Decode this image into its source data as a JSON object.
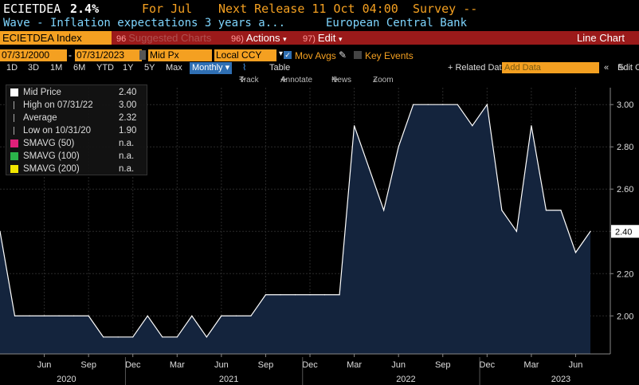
{
  "header": {
    "ticker": "ECIETDEA",
    "value": "2.4%",
    "for_label": "For Jul",
    "next_release": "Next Release 11 Oct 04:00",
    "survey": "Survey --",
    "description": "Wave - Inflation expectations 3 years a...",
    "source": "European Central Bank"
  },
  "toolbar": {
    "index": "ECIETDEA Index",
    "suggested": "Suggested Charts",
    "suggested_num": "96",
    "actions_num": "96)",
    "actions": "Actions",
    "edit_num": "97)",
    "edit": "Edit",
    "chart_type": "Line Chart"
  },
  "settings": {
    "start_date": "07/31/2000",
    "end_date": "07/31/2023",
    "field": "Mid Px",
    "currency": "Local CCY",
    "mov_avgs": "Mov Avgs",
    "key_events": "Key Events",
    "related_data": "+ Related Dat",
    "add_data_placeholder": "Add Data",
    "edit_chart": "Edit Chart"
  },
  "periods": [
    "1D",
    "3D",
    "1M",
    "6M",
    "YTD",
    "1Y",
    "5Y",
    "Max"
  ],
  "frequency": "Monthly",
  "table_label": "Table",
  "tools": [
    "Track",
    "Annotate",
    "News",
    "Zoom"
  ],
  "legend": [
    {
      "label": "Mid Price",
      "value": "2.40",
      "color": "#ffffff"
    },
    {
      "label": "High on 07/31/22",
      "value": "3.00",
      "color": "#aaaaaa"
    },
    {
      "label": "Average",
      "value": "2.32",
      "color": "#aaaaaa"
    },
    {
      "label": "Low on 10/31/20",
      "value": "1.90",
      "color": "#aaaaaa"
    },
    {
      "label": "SMAVG (50)",
      "value": "n.a.",
      "color": "#e0207a"
    },
    {
      "label": "SMAVG (100)",
      "value": "n.a.",
      "color": "#2bb34a"
    },
    {
      "label": "SMAVG (200)",
      "value": "n.a.",
      "color": "#f2e600"
    }
  ],
  "colors": {
    "line": "#ffffff",
    "fill": "#14243d",
    "grid": "#2a2a2a",
    "accent": "#f4a021"
  },
  "chart_data": {
    "type": "area",
    "title": "",
    "xlabel": "",
    "ylabel": "",
    "ylim": [
      1.82,
      3.08
    ],
    "yticks": [
      2.0,
      2.2,
      2.4,
      2.6,
      2.8,
      3.0
    ],
    "ytick_labels": [
      "2.00",
      "2.20",
      "2.40",
      "2.60",
      "2.80",
      "3.00"
    ],
    "last_value_label": "2.40",
    "x_start": "Mar 2020",
    "x": [
      "Mar 2020",
      "Apr 2020",
      "May 2020",
      "Jun 2020",
      "Jul 2020",
      "Aug 2020",
      "Sep 2020",
      "Oct 2020",
      "Nov 2020",
      "Dec 2020",
      "Jan 2021",
      "Feb 2021",
      "Mar 2021",
      "Apr 2021",
      "May 2021",
      "Jun 2021",
      "Jul 2021",
      "Aug 2021",
      "Sep 2021",
      "Oct 2021",
      "Nov 2021",
      "Dec 2021",
      "Jan 2022",
      "Feb 2022",
      "Mar 2022",
      "Apr 2022",
      "May 2022",
      "Jun 2022",
      "Jul 2022",
      "Aug 2022",
      "Sep 2022",
      "Oct 2022",
      "Nov 2022",
      "Dec 2022",
      "Jan 2023",
      "Feb 2023",
      "Mar 2023",
      "Apr 2023",
      "May 2023",
      "Jun 2023",
      "Jul 2023"
    ],
    "values": [
      2.4,
      2.0,
      2.0,
      2.0,
      2.0,
      2.0,
      2.0,
      1.9,
      1.9,
      1.9,
      2.0,
      1.9,
      1.9,
      2.0,
      1.9,
      2.0,
      2.0,
      2.0,
      2.1,
      2.1,
      2.1,
      2.1,
      2.1,
      2.1,
      2.9,
      2.7,
      2.5,
      2.8,
      3.0,
      3.0,
      3.0,
      3.0,
      2.9,
      3.0,
      2.5,
      2.4,
      2.9,
      2.5,
      2.5,
      2.3,
      2.4
    ],
    "month_ticks": [
      {
        "label": "Jun",
        "index": 3
      },
      {
        "label": "Sep",
        "index": 6
      },
      {
        "label": "Dec",
        "index": 9
      },
      {
        "label": "Mar",
        "index": 12
      },
      {
        "label": "Jun",
        "index": 15
      },
      {
        "label": "Sep",
        "index": 18
      },
      {
        "label": "Dec",
        "index": 21
      },
      {
        "label": "Mar",
        "index": 24
      },
      {
        "label": "Jun",
        "index": 27
      },
      {
        "label": "Sep",
        "index": 30
      },
      {
        "label": "Dec",
        "index": 33
      },
      {
        "label": "Mar",
        "index": 36
      },
      {
        "label": "Jun",
        "index": 39
      }
    ],
    "year_labels": [
      {
        "label": "2020",
        "index": 4.5
      },
      {
        "label": "2021",
        "index": 15.5
      },
      {
        "label": "2022",
        "index": 27.5
      },
      {
        "label": "2023",
        "index": 38
      }
    ],
    "year_separators": [
      8.5,
      20.5,
      32.5
    ],
    "grid": true,
    "legend_position": "top-left"
  }
}
